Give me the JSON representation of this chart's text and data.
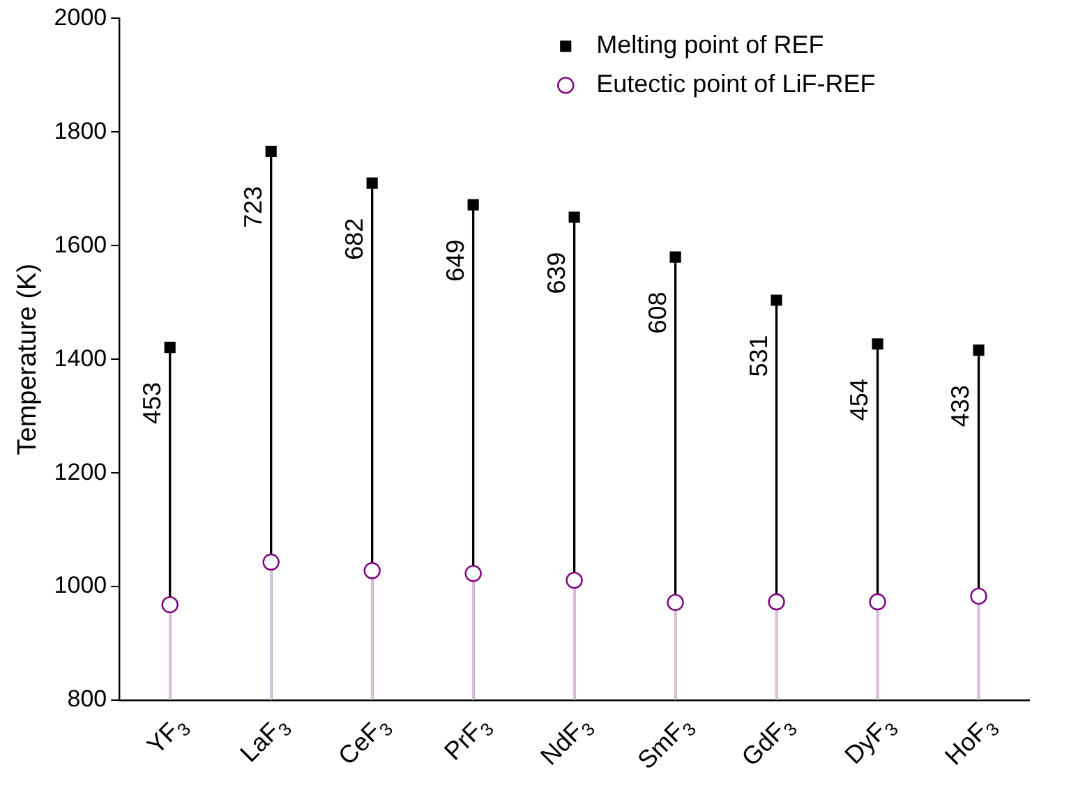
{
  "chart_data": {
    "type": "lollipop",
    "ylabel": "Temperature (K)",
    "categories": [
      "YF$_{3}$",
      "LaF$_{3}$",
      "CeF$_{3}$",
      "PrF$_{3}$",
      "NdF$_{3}$",
      "SmF$_{3}$",
      "GdF$_{3}$",
      "DyF$_{3}$",
      "HoF$_{3}$"
    ],
    "series": [
      {
        "name": "Melting point of REF",
        "color": "#000000",
        "marker": "square",
        "values": [
          1421,
          1766,
          1710,
          1672,
          1650,
          1580,
          1504,
          1427,
          1416
        ]
      },
      {
        "name": "Eutectic point of LiF-REF",
        "color": "#800080",
        "marker": "circle",
        "values": [
          968,
          1043,
          1028,
          1023,
          1011,
          972,
          973,
          973,
          983
        ]
      }
    ],
    "ylim": [
      800,
      2000
    ],
    "yticks": [
      800,
      1000,
      1200,
      1400,
      1600,
      1800,
      2000
    ],
    "grid": false,
    "legend": "top right",
    "annotations": [
      "453",
      "723",
      "682",
      "649",
      "639",
      "608",
      "531",
      "454",
      "433"
    ]
  }
}
